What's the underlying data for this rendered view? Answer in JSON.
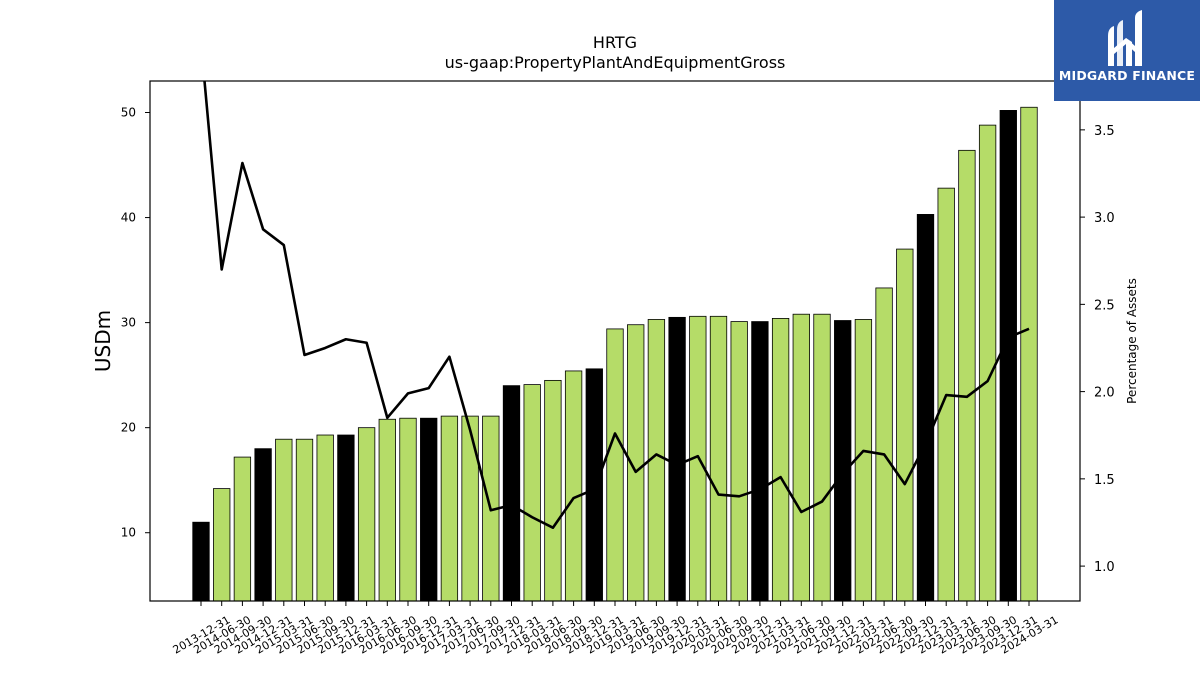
{
  "chart_data": {
    "type": "bar+line",
    "title": "HRTG",
    "subtitle": "us-gaap:PropertyPlantAndEquipmentGross",
    "ylabel": "USDm",
    "y2label": "Percentage of Assets",
    "ylim": [
      3.5,
      53
    ],
    "y2lim": [
      0.8,
      3.78
    ],
    "yticks": [
      10,
      20,
      30,
      40,
      50
    ],
    "y2ticks": [
      1.0,
      1.5,
      2.0,
      2.5,
      3.0,
      3.5
    ],
    "y2tick_labels": [
      "1.0",
      "1.5",
      "2.0",
      "2.5",
      "3.0",
      "3.5"
    ],
    "categories": [
      "2013-12-31",
      "2014-06-30",
      "2014-09-30",
      "2014-12-31",
      "2015-03-31",
      "2015-06-30",
      "2015-09-30",
      "2015-12-31",
      "2016-03-31",
      "2016-06-30",
      "2016-09-30",
      "2016-12-31",
      "2017-03-31",
      "2017-06-30",
      "2017-09-30",
      "2017-12-31",
      "2018-03-31",
      "2018-06-30",
      "2018-09-30",
      "2018-12-31",
      "2019-03-31",
      "2019-06-30",
      "2019-09-30",
      "2019-12-31",
      "2020-03-31",
      "2020-06-30",
      "2020-09-30",
      "2020-12-31",
      "2021-03-31",
      "2021-06-30",
      "2021-09-30",
      "2021-12-31",
      "2022-03-31",
      "2022-06-30",
      "2022-09-30",
      "2022-12-31",
      "2023-03-31",
      "2023-06-30",
      "2023-09-30",
      "2023-12-31",
      "2024-03-31"
    ],
    "series": [
      {
        "kind": "bar",
        "values": [
          11.0,
          14.2,
          17.2,
          18.0,
          18.9,
          18.9,
          19.3,
          19.3,
          20.0,
          20.8,
          20.9,
          20.9,
          21.1,
          21.1,
          21.1,
          24.0,
          24.1,
          24.5,
          25.4,
          25.6,
          29.4,
          29.8,
          30.3,
          30.5,
          30.6,
          30.6,
          30.1,
          30.1,
          30.4,
          30.8,
          30.8,
          30.2,
          30.3,
          33.3,
          37.0,
          40.3,
          42.8,
          46.4,
          48.8,
          50.2,
          50.5
        ],
        "annual_color": "#000000",
        "quarter_color": "#b5dc68"
      },
      {
        "kind": "line",
        "axis": "right",
        "color": "#000000",
        "values": [
          4.0,
          2.7,
          3.31,
          2.93,
          2.84,
          2.21,
          2.25,
          2.3,
          2.28,
          1.85,
          1.99,
          2.02,
          2.2,
          1.78,
          1.32,
          1.35,
          1.28,
          1.22,
          1.39,
          1.44,
          1.76,
          1.54,
          1.64,
          1.58,
          1.63,
          1.41,
          1.4,
          1.44,
          1.51,
          1.31,
          1.37,
          1.53,
          1.66,
          1.64,
          1.47,
          1.7,
          1.98,
          1.97,
          2.06,
          2.31,
          2.36
        ]
      }
    ],
    "legend": "none",
    "grid": false
  },
  "logo": {
    "text": "MIDGARD FINANCE",
    "icon": "midgard-logo-icon",
    "background": "#2d5aa8"
  }
}
